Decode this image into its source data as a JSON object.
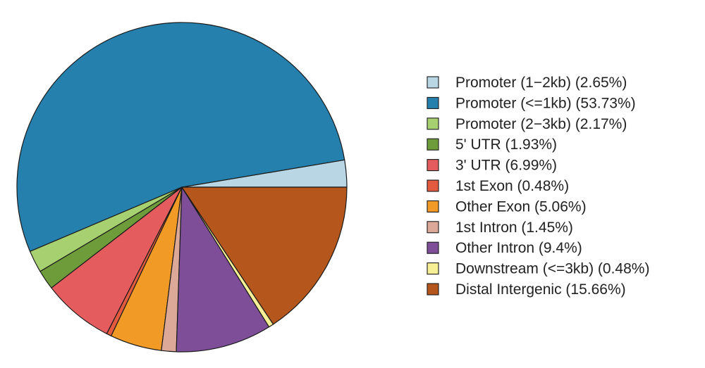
{
  "chart_data": {
    "type": "pie",
    "title": "",
    "legend_position": "right",
    "slices": [
      {
        "label": "Promoter (1−2kb) (2.65%)",
        "value": 2.65,
        "color": "#b8d6e4"
      },
      {
        "label": "Promoter (<=1kb) (53.73%)",
        "value": 53.73,
        "color": "#2680ad"
      },
      {
        "label": "Promoter (2−3kb) (2.17%)",
        "value": 2.17,
        "color": "#a7d070"
      },
      {
        "label": "5' UTR (1.93%)",
        "value": 1.93,
        "color": "#6e9c3a"
      },
      {
        "label": "3' UTR (6.99%)",
        "value": 6.99,
        "color": "#e55c5f"
      },
      {
        "label": "1st Exon (0.48%)",
        "value": 0.48,
        "color": "#e35a3f"
      },
      {
        "label": "Other Exon (5.06%)",
        "value": 5.06,
        "color": "#f29a26"
      },
      {
        "label": "1st Intron (1.45%)",
        "value": 1.45,
        "color": "#dca898"
      },
      {
        "label": "Other Intron (9.4%)",
        "value": 9.4,
        "color": "#7e4e99"
      },
      {
        "label": "Downstream (<=3kb) (0.48%)",
        "value": 0.48,
        "color": "#f7ef96"
      },
      {
        "label": "Distal Intergenic (15.66%)",
        "value": 15.66,
        "color": "#b5561c"
      }
    ]
  }
}
